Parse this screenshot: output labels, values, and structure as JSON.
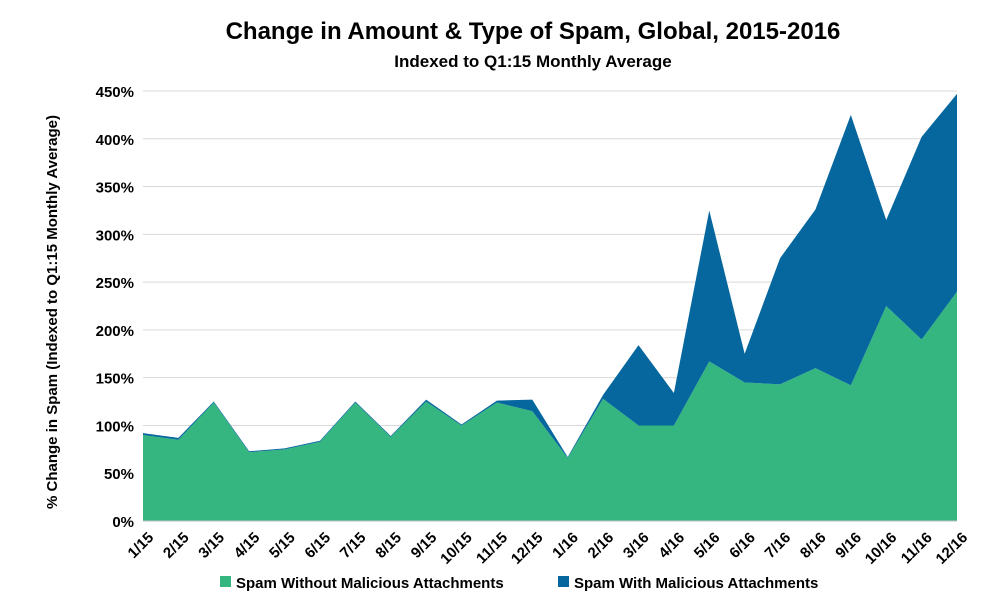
{
  "chart_data": {
    "type": "area",
    "title": "Change in Amount & Type of Spam, Global, 2015-2016",
    "subtitle": "Indexed to Q1:15 Monthly Average",
    "xlabel": "",
    "ylabel": "% Change in Spam (Indexed to Q1:15 Monthly Average)",
    "stacked": true,
    "categories": [
      "1/15",
      "2/15",
      "3/15",
      "4/15",
      "5/15",
      "6/15",
      "7/15",
      "8/15",
      "9/15",
      "10/15",
      "11/15",
      "12/15",
      "1/16",
      "2/16",
      "3/16",
      "4/16",
      "5/16",
      "6/16",
      "7/16",
      "8/16",
      "9/16",
      "10/16",
      "11/16",
      "12/16"
    ],
    "series": [
      {
        "name": "Spam Without Malicious Attachments",
        "color": "#35b57f",
        "values": [
          90,
          85,
          124,
          72,
          75,
          83,
          124,
          88,
          125,
          100,
          124,
          115,
          66,
          128,
          100,
          100,
          167,
          145,
          143,
          160,
          142,
          225,
          190,
          240
        ]
      },
      {
        "name": "Spam With Malicious Attachments",
        "color": "#05679e",
        "values": [
          2,
          2,
          1,
          1,
          1,
          1,
          1,
          1,
          2,
          1,
          2,
          12,
          1,
          4,
          84,
          34,
          158,
          30,
          132,
          166,
          283,
          90,
          212,
          207
        ]
      }
    ],
    "yticks": [
      "0%",
      "50%",
      "100%",
      "150%",
      "200%",
      "250%",
      "300%",
      "350%",
      "400%",
      "450%"
    ],
    "ylim": [
      0,
      450
    ],
    "grid": true,
    "legend": "bottom"
  }
}
